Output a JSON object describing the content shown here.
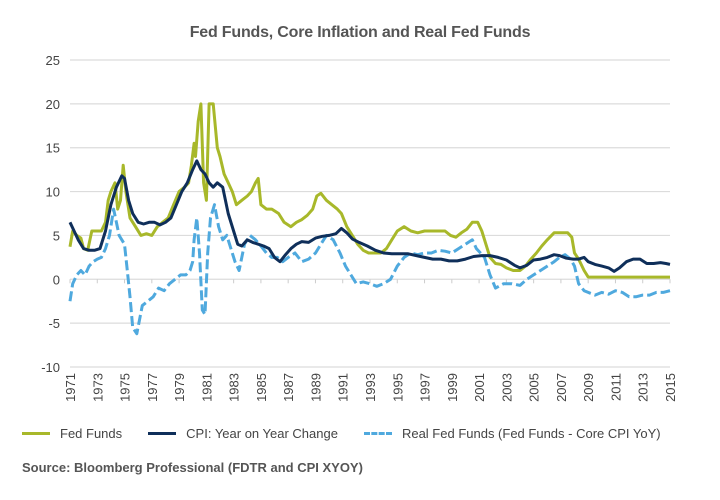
{
  "chart_data": {
    "type": "line",
    "title": "Fed Funds, Core Inflation and Real Fed Funds",
    "xlabel": "",
    "ylabel": "",
    "ylim": [
      -10,
      25
    ],
    "xlim": [
      1971,
      2015
    ],
    "yticks": [
      "25",
      "20",
      "15",
      "10",
      "5",
      "0",
      "-5",
      "-10"
    ],
    "ytick_values": [
      25,
      20,
      15,
      10,
      5,
      0,
      -5,
      -10
    ],
    "xticks": [
      "1971",
      "1973",
      "1975",
      "1977",
      "1979",
      "1981",
      "1983",
      "1985",
      "1987",
      "1989",
      "1991",
      "1993",
      "1995",
      "1997",
      "1999",
      "2001",
      "2003",
      "2005",
      "2007",
      "2009",
      "2011",
      "2013",
      "2015"
    ],
    "grid": true,
    "legend_position": "bottom",
    "series": [
      {
        "name": "Fed Funds",
        "color": "#a8b82a",
        "style": "solid",
        "x": [
          1971,
          1971.2,
          1971.5,
          1971.8,
          1972.0,
          1972.3,
          1972.6,
          1973.0,
          1973.3,
          1973.6,
          1973.8,
          1974.0,
          1974.3,
          1974.5,
          1974.7,
          1974.9,
          1975.1,
          1975.4,
          1975.8,
          1976.2,
          1976.6,
          1977.0,
          1977.4,
          1977.8,
          1978.2,
          1978.6,
          1979.0,
          1979.4,
          1979.7,
          1979.9,
          1980.1,
          1980.2,
          1980.4,
          1980.6,
          1980.8,
          1981.0,
          1981.2,
          1981.5,
          1981.8,
          1982.0,
          1982.3,
          1982.6,
          1982.9,
          1983.2,
          1983.6,
          1984.0,
          1984.3,
          1984.6,
          1984.8,
          1985.0,
          1985.4,
          1985.8,
          1986.3,
          1986.7,
          1987.2,
          1987.6,
          1988.0,
          1988.4,
          1988.8,
          1989.1,
          1989.4,
          1989.8,
          1990.2,
          1990.6,
          1990.9,
          1991.3,
          1991.7,
          1992.1,
          1992.5,
          1992.9,
          1993.3,
          1993.8,
          1994.2,
          1994.6,
          1995.0,
          1995.5,
          1996.0,
          1996.5,
          1997.0,
          1997.5,
          1998.0,
          1998.5,
          1998.9,
          1999.3,
          1999.7,
          2000.1,
          2000.5,
          2000.9,
          2001.2,
          2001.5,
          2001.8,
          2002.2,
          2002.6,
          2003.0,
          2003.5,
          2004.0,
          2004.4,
          2004.8,
          2005.2,
          2005.6,
          2006.0,
          2006.5,
          2007.0,
          2007.5,
          2007.8,
          2008.0,
          2008.3,
          2008.7,
          2009.0,
          2010.0,
          2011.0,
          2012.0,
          2013.0,
          2014.0,
          2015.0
        ],
        "y": [
          3.7,
          5.5,
          5.0,
          4.7,
          3.5,
          3.3,
          5.5,
          5.5,
          5.5,
          6.5,
          9.0,
          10.0,
          11.0,
          8.0,
          9.0,
          13.0,
          10.0,
          7.0,
          6.0,
          5.0,
          5.2,
          5.0,
          6.0,
          6.5,
          7.0,
          8.5,
          10.0,
          10.5,
          11.0,
          13.0,
          15.5,
          14.0,
          18.0,
          20.0,
          11.0,
          9.0,
          20.0,
          20.0,
          15.0,
          14.0,
          12.0,
          11.0,
          10.0,
          8.5,
          9.0,
          9.5,
          10.0,
          11.0,
          11.5,
          8.5,
          8.0,
          8.0,
          7.5,
          6.5,
          6.0,
          6.5,
          6.8,
          7.3,
          8.0,
          9.5,
          9.8,
          9.0,
          8.5,
          8.0,
          7.5,
          6.0,
          5.0,
          4.0,
          3.3,
          3.0,
          3.0,
          3.0,
          3.5,
          4.5,
          5.5,
          6.0,
          5.5,
          5.3,
          5.5,
          5.5,
          5.5,
          5.5,
          5.0,
          4.8,
          5.3,
          5.7,
          6.5,
          6.5,
          5.5,
          4.0,
          2.5,
          1.8,
          1.7,
          1.3,
          1.0,
          1.0,
          1.5,
          2.3,
          3.0,
          3.8,
          4.5,
          5.3,
          5.3,
          5.3,
          4.8,
          3.0,
          2.3,
          1.0,
          0.25,
          0.25,
          0.25,
          0.25,
          0.25,
          0.25,
          0.25
        ]
      },
      {
        "name": "CPI: Year on Year Change",
        "color": "#0f2f5a",
        "style": "solid",
        "x": [
          1971,
          1971.3,
          1971.6,
          1972.0,
          1972.4,
          1972.8,
          1973.2,
          1973.6,
          1974.0,
          1974.4,
          1974.8,
          1975.0,
          1975.3,
          1975.6,
          1976.0,
          1976.4,
          1976.8,
          1977.2,
          1977.6,
          1978.0,
          1978.4,
          1978.8,
          1979.2,
          1979.6,
          1980.0,
          1980.3,
          1980.6,
          1980.9,
          1981.2,
          1981.5,
          1981.8,
          1982.2,
          1982.6,
          1983.0,
          1983.3,
          1983.6,
          1984.0,
          1984.4,
          1984.8,
          1985.2,
          1985.6,
          1986.0,
          1986.4,
          1986.8,
          1987.2,
          1987.6,
          1988.0,
          1988.5,
          1989.0,
          1989.5,
          1990.0,
          1990.5,
          1990.9,
          1991.3,
          1991.7,
          1992.2,
          1992.8,
          1993.4,
          1994.0,
          1994.6,
          1995.2,
          1995.8,
          1996.4,
          1997.0,
          1997.6,
          1998.2,
          1998.8,
          1999.4,
          2000.0,
          2000.6,
          2001.2,
          2001.8,
          2002.4,
          2003.0,
          2003.6,
          2004.0,
          2004.5,
          2005.0,
          2005.5,
          2006.0,
          2006.5,
          2006.9,
          2007.4,
          2007.9,
          2008.3,
          2008.7,
          2009.0,
          2009.5,
          2010.0,
          2010.5,
          2010.9,
          2011.3,
          2011.8,
          2012.3,
          2012.8,
          2013.3,
          2013.8,
          2014.3,
          2014.7,
          2015.0
        ],
        "y": [
          6.5,
          5.5,
          4.5,
          3.5,
          3.3,
          3.3,
          3.5,
          5.5,
          8.5,
          10.5,
          11.8,
          11.5,
          9.0,
          7.5,
          6.5,
          6.3,
          6.5,
          6.5,
          6.2,
          6.5,
          7.0,
          8.5,
          10.0,
          11.0,
          12.5,
          13.5,
          12.5,
          12.0,
          11.0,
          10.5,
          11.0,
          10.5,
          7.5,
          5.5,
          4.0,
          3.8,
          4.5,
          4.2,
          4.0,
          3.8,
          3.5,
          2.5,
          2.0,
          2.8,
          3.5,
          4.0,
          4.3,
          4.2,
          4.7,
          4.9,
          5.0,
          5.2,
          5.8,
          5.3,
          4.6,
          4.2,
          3.8,
          3.3,
          3.0,
          2.9,
          2.9,
          2.9,
          2.7,
          2.5,
          2.3,
          2.3,
          2.1,
          2.1,
          2.3,
          2.6,
          2.7,
          2.7,
          2.5,
          2.2,
          1.6,
          1.3,
          1.6,
          2.2,
          2.3,
          2.5,
          2.8,
          2.7,
          2.4,
          2.3,
          2.3,
          2.5,
          2.0,
          1.7,
          1.5,
          1.3,
          0.9,
          1.3,
          2.0,
          2.3,
          2.3,
          1.8,
          1.8,
          1.9,
          1.8,
          1.7
        ]
      },
      {
        "name": "Real Fed Funds (Fed Funds - Core CPI YoY)",
        "color": "#4fa9de",
        "style": "dashed",
        "x": [
          1971,
          1971.2,
          1971.5,
          1971.8,
          1972.1,
          1972.4,
          1972.7,
          1973.0,
          1973.3,
          1973.6,
          1973.9,
          1974.2,
          1974.4,
          1974.6,
          1974.8,
          1975.0,
          1975.2,
          1975.4,
          1975.6,
          1975.9,
          1976.3,
          1976.7,
          1977.1,
          1977.5,
          1977.9,
          1978.3,
          1978.7,
          1979.1,
          1979.5,
          1979.8,
          1980.0,
          1980.1,
          1980.3,
          1980.5,
          1980.7,
          1980.9,
          1981.1,
          1981.3,
          1981.6,
          1981.9,
          1982.2,
          1982.5,
          1982.8,
          1983.1,
          1983.4,
          1983.8,
          1984.2,
          1984.6,
          1985.0,
          1985.4,
          1985.8,
          1986.2,
          1986.6,
          1987.0,
          1987.5,
          1988.0,
          1988.5,
          1989.0,
          1989.4,
          1989.8,
          1990.3,
          1990.8,
          1991.2,
          1991.6,
          1992.0,
          1992.5,
          1993.0,
          1993.5,
          1994.0,
          1994.5,
          1995.0,
          1995.5,
          1996.0,
          1996.5,
          1997.0,
          1997.5,
          1998.0,
          1998.5,
          1999.0,
          1999.5,
          2000.0,
          2000.5,
          2000.8,
          2001.1,
          2001.4,
          2001.8,
          2002.2,
          2002.8,
          2003.4,
          2004.0,
          2004.5,
          2005.0,
          2005.5,
          2006.0,
          2006.5,
          2006.9,
          2007.3,
          2007.7,
          2008.0,
          2008.3,
          2008.7,
          2009.0,
          2009.5,
          2010.0,
          2010.5,
          2011.0,
          2011.5,
          2012.0,
          2012.5,
          2013.0,
          2013.5,
          2014.0,
          2014.5,
          2015.0
        ],
        "y": [
          -2.5,
          -0.5,
          0.5,
          1.0,
          0.5,
          1.5,
          2.0,
          2.3,
          2.5,
          3.5,
          5.0,
          8.0,
          6.5,
          5.0,
          4.5,
          4.0,
          1.0,
          -2.0,
          -5.5,
          -6.2,
          -3.0,
          -2.5,
          -2.0,
          -1.0,
          -1.3,
          -0.5,
          0.0,
          0.5,
          0.5,
          1.0,
          2.0,
          4.5,
          7.0,
          3.0,
          -3.5,
          -4.0,
          3.0,
          7.0,
          8.5,
          6.0,
          4.5,
          5.0,
          3.5,
          2.0,
          1.0,
          4.0,
          5.0,
          4.5,
          3.8,
          3.0,
          2.5,
          2.5,
          2.0,
          2.5,
          3.0,
          2.0,
          2.3,
          3.0,
          4.0,
          5.0,
          4.5,
          3.0,
          1.5,
          0.5,
          -0.5,
          -0.3,
          -0.5,
          -0.8,
          -0.5,
          0.0,
          1.5,
          2.5,
          3.0,
          2.8,
          3.0,
          3.0,
          3.3,
          3.2,
          3.0,
          3.5,
          4.0,
          4.5,
          3.5,
          3.0,
          2.5,
          0.5,
          -1.0,
          -0.5,
          -0.5,
          -0.7,
          0.0,
          0.5,
          1.0,
          1.5,
          2.0,
          2.5,
          2.8,
          2.3,
          1.5,
          -0.5,
          -1.3,
          -1.5,
          -1.8,
          -1.5,
          -1.7,
          -1.3,
          -1.5,
          -2.0,
          -2.0,
          -1.8,
          -1.8,
          -1.5,
          -1.5,
          -1.3
        ]
      }
    ]
  },
  "source": "Source: Bloomberg Professional (FDTR and CPI XYOY)"
}
